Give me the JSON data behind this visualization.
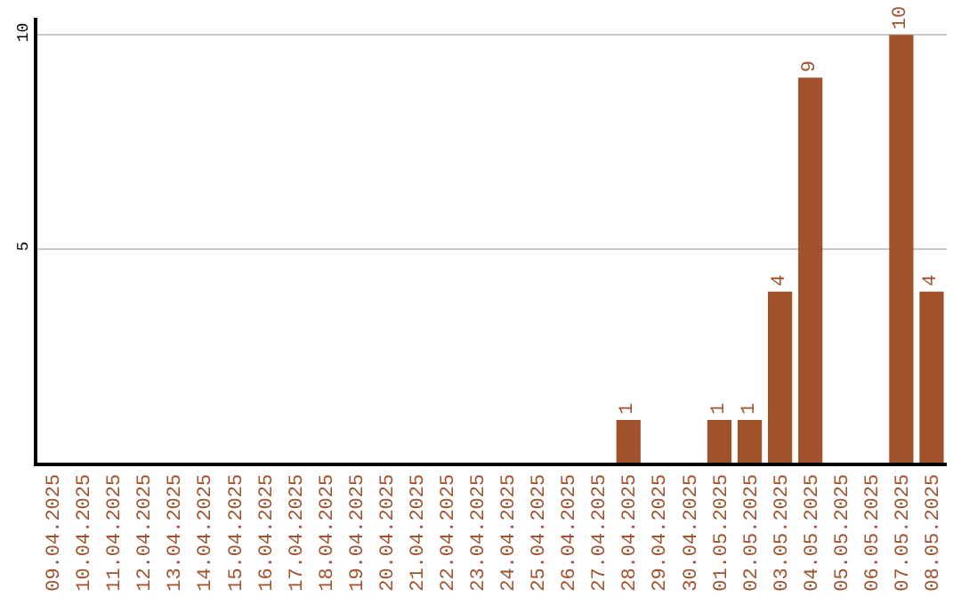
{
  "chart_data": {
    "type": "bar",
    "categories": [
      "09.04.2025",
      "10.04.2025",
      "11.04.2025",
      "12.04.2025",
      "13.04.2025",
      "14.04.2025",
      "15.04.2025",
      "16.04.2025",
      "17.04.2025",
      "18.04.2025",
      "19.04.2025",
      "20.04.2025",
      "21.04.2025",
      "22.04.2025",
      "23.04.2025",
      "24.04.2025",
      "25.04.2025",
      "26.04.2025",
      "27.04.2025",
      "28.04.2025",
      "29.04.2025",
      "30.04.2025",
      "01.05.2025",
      "02.05.2025",
      "03.05.2025",
      "04.05.2025",
      "05.05.2025",
      "06.05.2025",
      "07.05.2025",
      "08.05.2025"
    ],
    "values": [
      0,
      0,
      0,
      0,
      0,
      0,
      0,
      0,
      0,
      0,
      0,
      0,
      0,
      0,
      0,
      0,
      0,
      0,
      0,
      1,
      0,
      0,
      1,
      1,
      4,
      9,
      0,
      0,
      10,
      4
    ],
    "value_labels": [
      null,
      null,
      null,
      null,
      null,
      null,
      null,
      null,
      null,
      null,
      null,
      null,
      null,
      null,
      null,
      null,
      null,
      null,
      null,
      "1",
      null,
      null,
      "1",
      "1",
      "4",
      "9",
      null,
      null,
      "10",
      "4"
    ],
    "color": "#a0522d",
    "ylim": [
      0,
      10.4
    ],
    "yticks": [
      5,
      10
    ],
    "grid": "y"
  }
}
